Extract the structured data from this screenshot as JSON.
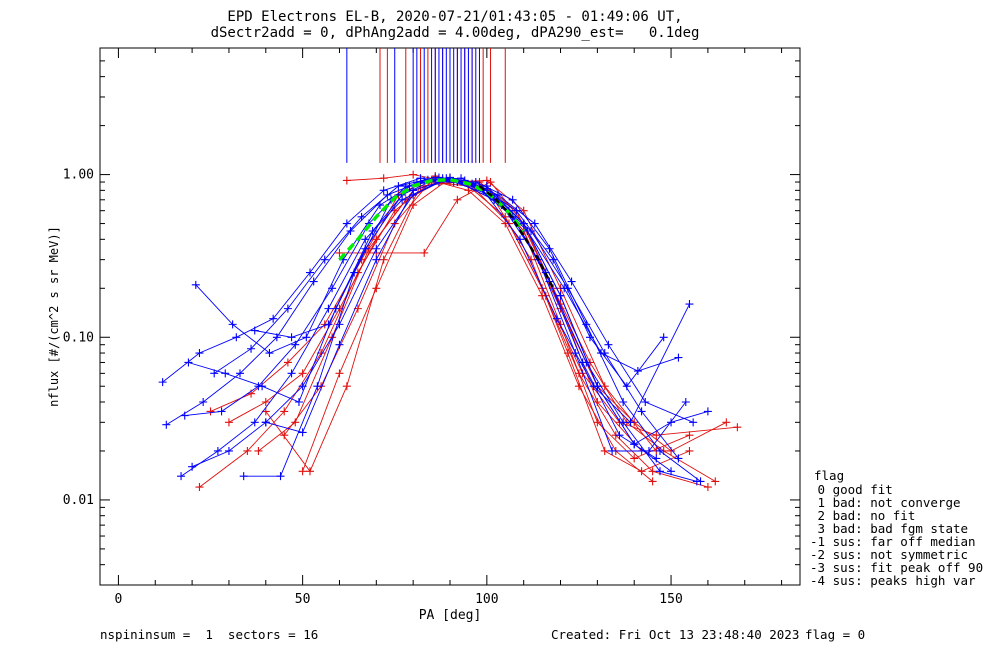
{
  "chart_data": {
    "type": "line",
    "title_line1": "EPD Electrons EL-B, 2020-07-21/01:43:05 - 01:49:06 UT,",
    "title_line2": "dSectr2add = 0, dPhAng2add = 4.00deg, dPA290_est=   0.1deg",
    "xlabel": "PA [deg]",
    "ylabel": "nflux [#/(cm^2 s sr MeV)]",
    "xlim": [
      -5,
      185
    ],
    "ylim": [
      0.003,
      6.0
    ],
    "yscale": "log",
    "x_ticks": [
      0,
      50,
      100,
      150
    ],
    "x_tick_labels": [
      "0",
      "50",
      "100",
      "150"
    ],
    "y_ticks": [
      0.01,
      0.1,
      1.0
    ],
    "y_tick_labels": [
      "0.01",
      "0.10",
      "1.00"
    ],
    "colors": {
      "red": "#e01010",
      "blue": "#0000ff",
      "green": "#00ee00",
      "black": "#000000"
    },
    "series": [
      {
        "color": "red",
        "x": [
          22,
          35,
          45,
          55,
          65,
          75,
          85,
          95,
          105,
          115,
          125,
          135,
          145,
          160
        ],
        "y": [
          0.012,
          0.02,
          0.035,
          0.08,
          0.25,
          0.6,
          0.9,
          0.85,
          0.55,
          0.2,
          0.06,
          0.025,
          0.015,
          0.012
        ]
      },
      {
        "color": "red",
        "x": [
          30,
          40,
          50,
          60,
          70,
          80,
          90,
          100,
          110,
          120,
          130,
          140,
          150,
          165
        ],
        "y": [
          0.03,
          0.04,
          0.06,
          0.15,
          0.4,
          0.8,
          0.95,
          0.8,
          0.45,
          0.15,
          0.05,
          0.03,
          0.02,
          0.03
        ]
      },
      {
        "color": "red",
        "x": [
          40,
          52,
          62,
          72,
          82,
          92,
          102,
          112,
          122,
          132,
          142,
          155
        ],
        "y": [
          0.035,
          0.015,
          0.05,
          0.3,
          0.85,
          0.9,
          0.7,
          0.3,
          0.08,
          0.02,
          0.015,
          0.02
        ]
      },
      {
        "color": "red",
        "x": [
          38,
          48,
          58,
          68,
          78,
          88,
          98,
          108,
          118,
          128,
          138,
          148,
          162
        ],
        "y": [
          0.02,
          0.03,
          0.1,
          0.35,
          0.7,
          0.92,
          0.9,
          0.6,
          0.2,
          0.07,
          0.03,
          0.02,
          0.013
        ]
      },
      {
        "color": "red",
        "x": [
          25,
          36,
          46,
          56,
          66,
          76,
          86,
          96,
          106,
          116,
          126,
          136,
          146,
          168
        ],
        "y": [
          0.035,
          0.045,
          0.07,
          0.12,
          0.3,
          0.75,
          0.98,
          0.85,
          0.5,
          0.18,
          0.06,
          0.03,
          0.025,
          0.028
        ]
      },
      {
        "color": "red",
        "x": [
          45,
          55,
          65,
          75,
          85,
          95,
          105,
          115,
          125,
          135,
          145
        ],
        "y": [
          0.025,
          0.05,
          0.15,
          0.5,
          0.92,
          0.8,
          0.5,
          0.18,
          0.05,
          0.02,
          0.013
        ]
      },
      {
        "color": "red",
        "x": [
          50,
          60,
          70,
          80,
          90,
          100,
          110,
          120,
          130,
          140,
          155
        ],
        "y": [
          0.015,
          0.06,
          0.2,
          0.65,
          0.95,
          0.85,
          0.45,
          0.12,
          0.03,
          0.018,
          0.025
        ]
      },
      {
        "color": "red",
        "x": [
          60,
          70,
          83,
          92,
          101,
          110,
          120,
          130,
          142
        ],
        "y": [
          0.33,
          0.33,
          0.33,
          0.7,
          0.9,
          0.5,
          0.16,
          0.04,
          0.02
        ]
      },
      {
        "color": "red",
        "x": [
          62,
          72,
          80,
          90,
          100,
          110,
          120,
          132,
          146
        ],
        "y": [
          0.92,
          0.95,
          1.0,
          0.9,
          0.92,
          0.6,
          0.2,
          0.05,
          0.02
        ]
      },
      {
        "color": "blue",
        "x": [
          12,
          22,
          32,
          42,
          52,
          62,
          72,
          82,
          92,
          102,
          112,
          122,
          132,
          142,
          152
        ],
        "y": [
          0.053,
          0.08,
          0.1,
          0.13,
          0.25,
          0.5,
          0.8,
          0.95,
          0.9,
          0.7,
          0.45,
          0.2,
          0.08,
          0.035,
          0.018
        ]
      },
      {
        "color": "blue",
        "x": [
          13,
          23,
          33,
          43,
          53,
          63,
          73,
          83,
          93,
          103,
          113,
          123,
          133,
          143,
          156
        ],
        "y": [
          0.029,
          0.04,
          0.06,
          0.1,
          0.22,
          0.45,
          0.75,
          0.92,
          0.95,
          0.75,
          0.5,
          0.22,
          0.09,
          0.04,
          0.03
        ]
      },
      {
        "color": "blue",
        "x": [
          17,
          27,
          37,
          47,
          57,
          67,
          77,
          87,
          97,
          107,
          117,
          127,
          137,
          147,
          158
        ],
        "y": [
          0.014,
          0.02,
          0.03,
          0.06,
          0.15,
          0.4,
          0.7,
          0.9,
          0.9,
          0.7,
          0.35,
          0.12,
          0.04,
          0.02,
          0.013
        ]
      },
      {
        "color": "blue",
        "x": [
          18,
          28,
          38,
          48,
          58,
          68,
          78,
          88,
          98,
          108,
          118,
          128,
          138,
          148
        ],
        "y": [
          0.033,
          0.035,
          0.05,
          0.09,
          0.2,
          0.5,
          0.85,
          0.95,
          0.85,
          0.6,
          0.3,
          0.1,
          0.05,
          0.1
        ]
      },
      {
        "color": "blue",
        "x": [
          20,
          30,
          40,
          50,
          60,
          70,
          80,
          90,
          100,
          110,
          120,
          130,
          140,
          150
        ],
        "y": [
          0.016,
          0.02,
          0.03,
          0.05,
          0.12,
          0.35,
          0.75,
          0.96,
          0.85,
          0.5,
          0.18,
          0.05,
          0.022,
          0.015
        ]
      },
      {
        "color": "blue",
        "x": [
          34,
          44,
          54,
          64,
          74,
          84,
          94,
          104,
          114,
          124,
          134,
          144,
          154
        ],
        "y": [
          0.014,
          0.014,
          0.05,
          0.25,
          0.7,
          0.93,
          0.92,
          0.65,
          0.3,
          0.08,
          0.02,
          0.02,
          0.04
        ]
      },
      {
        "color": "blue",
        "x": [
          19,
          29,
          39,
          49,
          59,
          69,
          79,
          89,
          99,
          109,
          119,
          129,
          139,
          155
        ],
        "y": [
          0.07,
          0.06,
          0.05,
          0.04,
          0.15,
          0.45,
          0.85,
          0.95,
          0.8,
          0.4,
          0.13,
          0.05,
          0.03,
          0.16
        ]
      },
      {
        "color": "blue",
        "x": [
          37,
          47,
          57,
          67,
          77,
          87,
          97,
          107,
          117,
          127,
          137,
          147,
          157
        ],
        "y": [
          0.11,
          0.1,
          0.12,
          0.35,
          0.75,
          0.96,
          0.85,
          0.55,
          0.22,
          0.07,
          0.03,
          0.015,
          0.013
        ]
      },
      {
        "color": "blue",
        "x": [
          21,
          31,
          41,
          51,
          61,
          71,
          81,
          91,
          101,
          111,
          121,
          131,
          141,
          152
        ],
        "y": [
          0.21,
          0.12,
          0.08,
          0.1,
          0.3,
          0.65,
          0.9,
          0.9,
          0.75,
          0.45,
          0.2,
          0.08,
          0.062,
          0.075
        ]
      },
      {
        "color": "blue",
        "x": [
          40,
          50,
          60,
          70,
          80,
          90,
          100,
          110,
          120,
          130,
          140,
          150,
          160
        ],
        "y": [
          0.03,
          0.026,
          0.09,
          0.3,
          0.8,
          0.94,
          0.82,
          0.5,
          0.18,
          0.05,
          0.022,
          0.03,
          0.035
        ]
      },
      {
        "color": "blue",
        "x": [
          26,
          36,
          46,
          56,
          66,
          76,
          86,
          96,
          106,
          116,
          126,
          136,
          146
        ],
        "y": [
          0.06,
          0.085,
          0.15,
          0.3,
          0.55,
          0.85,
          0.96,
          0.88,
          0.6,
          0.25,
          0.07,
          0.025,
          0.018
        ]
      }
    ],
    "ticks_top": {
      "x_red": [
        71,
        73,
        78,
        82,
        84,
        86,
        88,
        90,
        92,
        94,
        96,
        99,
        101,
        105
      ],
      "x_blue": [
        62,
        75,
        80,
        81,
        83,
        85,
        86,
        87,
        88,
        89,
        90,
        91,
        92,
        93,
        94,
        95,
        96,
        97,
        98
      ],
      "y_bottom": 1.18
    },
    "fit_green": {
      "x": [
        60,
        65,
        70,
        75,
        80,
        85,
        90,
        95,
        100,
        105,
        110
      ],
      "y": [
        0.3,
        0.4,
        0.55,
        0.72,
        0.85,
        0.92,
        0.93,
        0.88,
        0.78,
        0.62,
        0.45
      ]
    },
    "fit_black": {
      "x": [
        98,
        102,
        106,
        110,
        114,
        118
      ],
      "y": [
        0.85,
        0.72,
        0.58,
        0.42,
        0.3,
        0.2
      ]
    }
  },
  "legend": {
    "title": "flag",
    "items": [
      " 0 good fit",
      " 1 bad: not converge",
      " 2 bad: no fit",
      " 3 bad: bad fgm state",
      "-1 sus: far off median",
      "-2 sus: not symmetric",
      "-3 sus: fit peak off 90",
      "-4 sus: peaks high var"
    ]
  },
  "footer": {
    "left": "nspininsum =  1  sectors = 16",
    "created": "Created: Fri Oct 13 23:48:40 2023",
    "flag": "flag = 0"
  }
}
